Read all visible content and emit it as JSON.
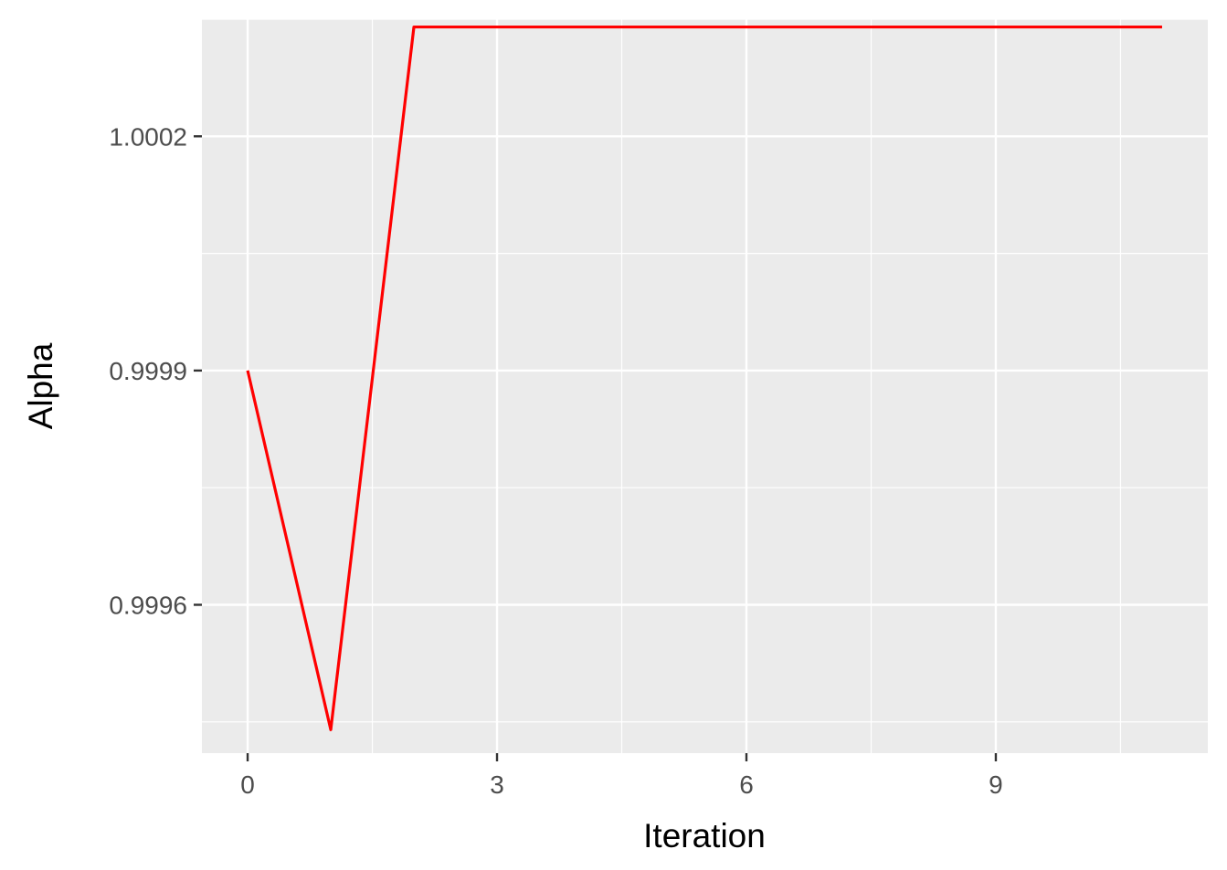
{
  "chart_data": {
    "type": "line",
    "title": "",
    "xlabel": "Iteration",
    "ylabel": "Alpha",
    "x": [
      0,
      1,
      2,
      3,
      4,
      5,
      6,
      7,
      8,
      9,
      10,
      11
    ],
    "series": [
      {
        "color": "#FF0000",
        "values": [
          0.9999,
          0.99944,
          1.00034,
          1.00034,
          1.00034,
          1.00034,
          1.00034,
          1.00034,
          1.00034,
          1.00034,
          1.00034,
          1.00034
        ]
      }
    ],
    "xlim": [
      -0.55,
      11.55
    ],
    "ylim": [
      0.99941,
      1.00035
    ],
    "x_ticks": [
      0,
      3,
      6,
      9
    ],
    "x_tick_labels": [
      "0",
      "3",
      "6",
      "9"
    ],
    "x_minor_ticks": [
      1.5,
      4.5,
      7.5,
      10.5
    ],
    "y_ticks": [
      0.9996,
      0.9999,
      1.0002
    ],
    "y_tick_labels": [
      "0.9996",
      "0.9999",
      "1.0002"
    ],
    "y_minor_ticks": [
      0.99945,
      0.99975,
      1.00005,
      1.00035
    ],
    "grid": true,
    "legend": "none",
    "panel_background": "#EBEBEB"
  }
}
